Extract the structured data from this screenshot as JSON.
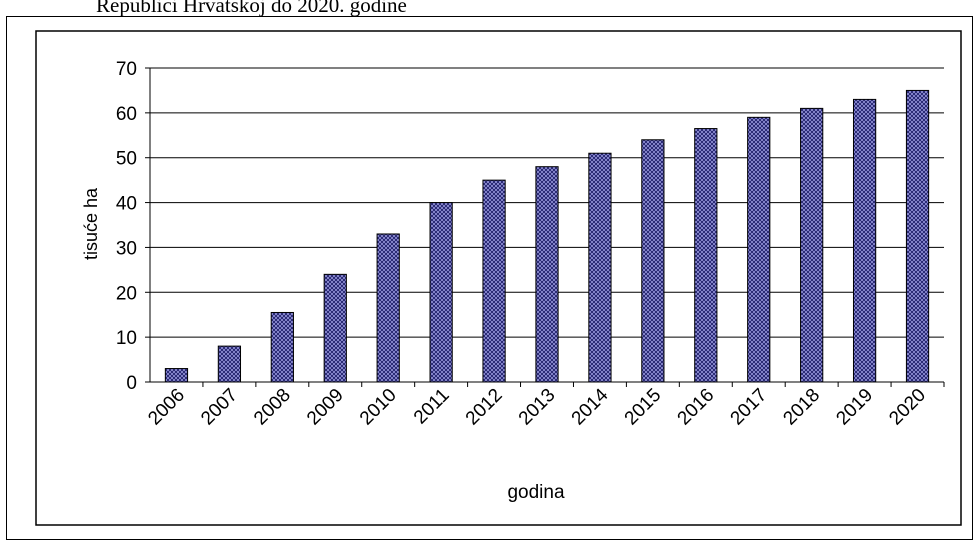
{
  "caption": "Republici Hrvatskoj do 2020. godine",
  "chart_data": {
    "type": "bar",
    "categories": [
      "2006",
      "2007",
      "2008",
      "2009",
      "2010",
      "2011",
      "2012",
      "2013",
      "2014",
      "2015",
      "2016",
      "2017",
      "2018",
      "2019",
      "2020"
    ],
    "values": [
      3,
      8,
      15.5,
      24,
      33,
      40,
      45,
      48,
      51,
      54,
      56.5,
      59,
      61,
      63,
      65
    ],
    "xlabel": "godina",
    "ylabel": "tisuće ha",
    "ylim": [
      0,
      70
    ],
    "yticks": [
      "0",
      "10",
      "20",
      "30",
      "40",
      "50",
      "60",
      "70"
    ],
    "grid": true,
    "legend": "none",
    "bar_color": "#8c8cd9",
    "bar_pattern": "crosshatch",
    "bar_pattern_color": "#1a1a66"
  }
}
